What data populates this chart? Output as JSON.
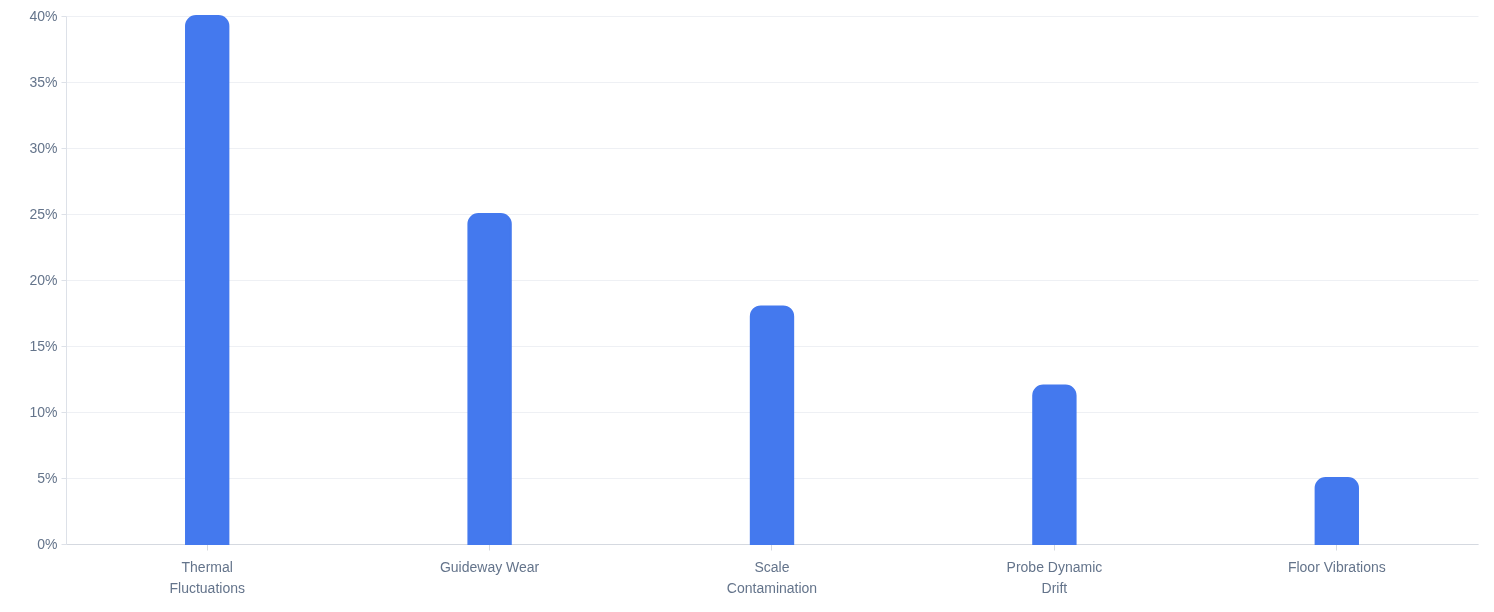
{
  "chart_data": {
    "type": "bar",
    "categories": [
      "Thermal Fluctuations",
      "Guideway Wear",
      "Scale Contamination",
      "Probe Dynamic Drift",
      "Floor Vibrations"
    ],
    "values": [
      40,
      25,
      18,
      12,
      5
    ],
    "color": "#4479ee",
    "ylim": [
      0,
      40
    ],
    "yticks": [
      {
        "value": 0,
        "label": "0%"
      },
      {
        "value": 5,
        "label": "5%"
      },
      {
        "value": 10,
        "label": "10%"
      },
      {
        "value": 15,
        "label": "15%"
      },
      {
        "value": 20,
        "label": "20%"
      },
      {
        "value": 25,
        "label": "25%"
      },
      {
        "value": 30,
        "label": "30%"
      },
      {
        "value": 35,
        "label": "35%"
      },
      {
        "value": 40,
        "label": "40%"
      }
    ],
    "grid": "y"
  }
}
